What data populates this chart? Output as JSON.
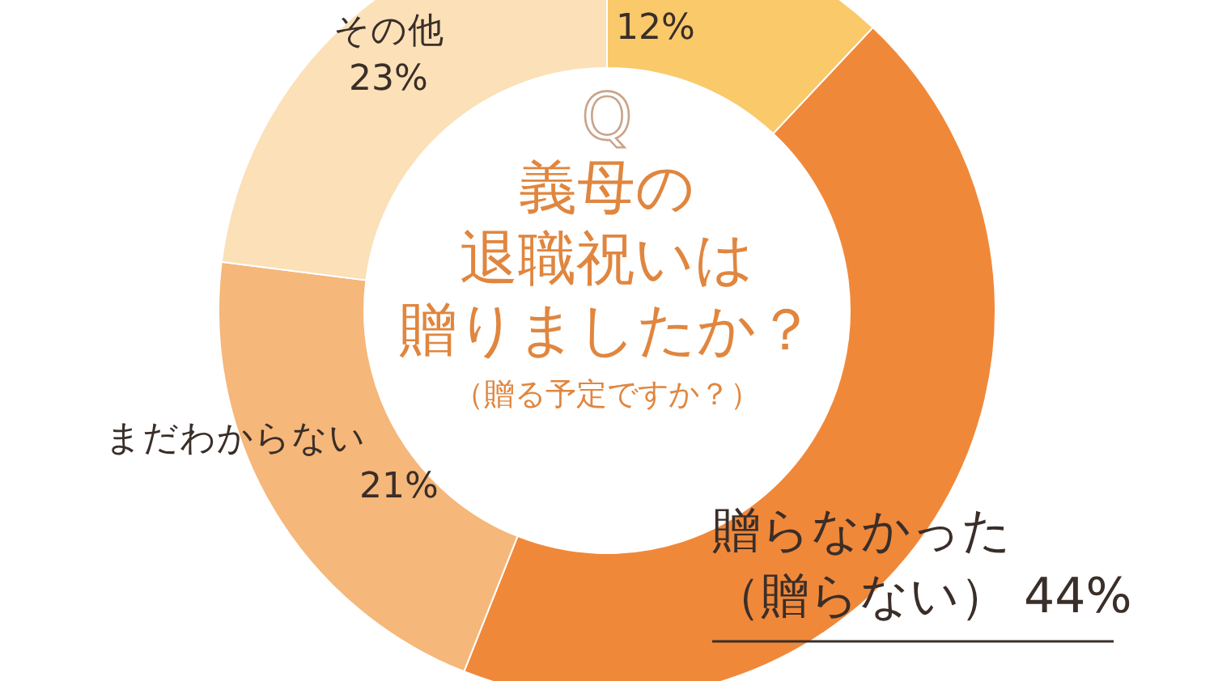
{
  "chart_data": {
    "type": "donut",
    "title": "義母の退職祝いは贈りましたか？",
    "subtitle": "（贈る予定ですか？）",
    "annotations": [
      "Q"
    ],
    "categories": [
      null,
      "贈らなかった（贈らない）",
      "まだわからない",
      "その他"
    ],
    "values": [
      12,
      44,
      21,
      23
    ],
    "value_labels": [
      "12%",
      "44%",
      "21%",
      "23%"
    ],
    "colors": [
      "#f9c96a",
      "#f0883a",
      "#f5b77a",
      "#fbe0b8"
    ]
  }
}
